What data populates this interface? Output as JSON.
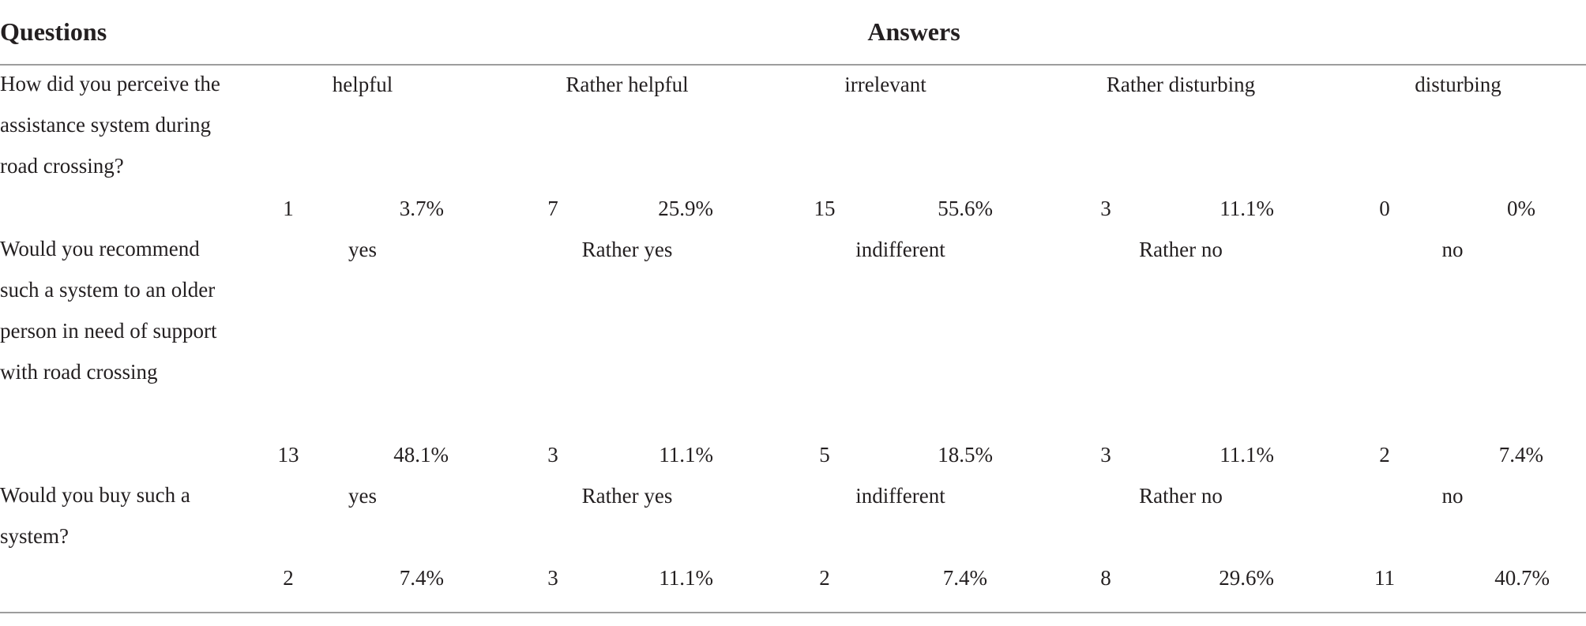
{
  "header": {
    "questions": "Questions",
    "answers": "Answers"
  },
  "rows": [
    {
      "question": "How did you perceive the assistance system during road crossing?",
      "options": [
        "helpful",
        "Rather helpful",
        "irrelevant",
        "Rather disturbing",
        "disturbing"
      ],
      "counts": [
        "1",
        "7",
        "15",
        "3",
        "0"
      ],
      "percents": [
        "3.7%",
        "25.9%",
        "55.6%",
        "11.1%",
        "0%"
      ]
    },
    {
      "question": "Would you recommend such a system to an older person in need of support with road crossing",
      "options": [
        "yes",
        "Rather yes",
        "indifferent",
        "Rather no",
        "no"
      ],
      "counts": [
        "13",
        "3",
        "5",
        "3",
        "2"
      ],
      "percents": [
        "48.1%",
        "11.1%",
        "18.5%",
        "11.1%",
        "7.4%"
      ]
    },
    {
      "question": "Would you buy such a system?",
      "options": [
        "yes",
        "Rather yes",
        "indifferent",
        "Rather no",
        "no"
      ],
      "counts": [
        "2",
        "3",
        "2",
        "8",
        "11"
      ],
      "percents": [
        "7.4%",
        "11.1%",
        "7.4%",
        "29.6%",
        "40.7%"
      ]
    }
  ]
}
